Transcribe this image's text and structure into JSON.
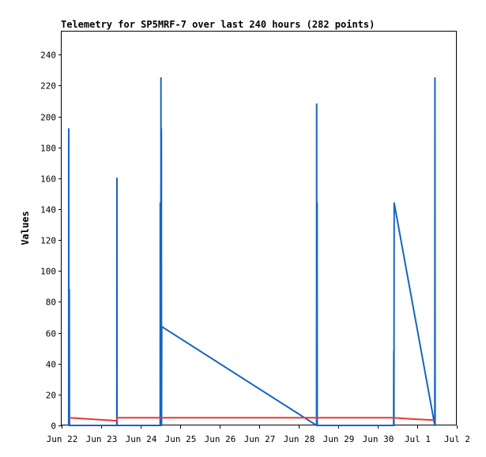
{
  "chart_data": {
    "type": "line",
    "title": "Telemetry for SP5MRF-7 over last 240 hours (282 points)",
    "ylabel": "Values",
    "xlabel": "",
    "ylim": [
      0,
      255
    ],
    "xlim": [
      "2023-06-22 00:00",
      "2023-07-02 00:00"
    ],
    "y_ticks": [
      0,
      20,
      40,
      60,
      80,
      100,
      120,
      140,
      160,
      180,
      200,
      220,
      240
    ],
    "x_ticks": [
      {
        "t": "2023-06-22 00:00",
        "label": "Jun 22"
      },
      {
        "t": "2023-06-23 00:00",
        "label": "Jun 23"
      },
      {
        "t": "2023-06-24 00:00",
        "label": "Jun 24"
      },
      {
        "t": "2023-06-25 00:00",
        "label": "Jun 25"
      },
      {
        "t": "2023-06-26 00:00",
        "label": "Jun 26"
      },
      {
        "t": "2023-06-27 00:00",
        "label": "Jun 27"
      },
      {
        "t": "2023-06-28 00:00",
        "label": "Jun 28"
      },
      {
        "t": "2023-06-29 00:00",
        "label": "Jun 29"
      },
      {
        "t": "2023-06-30 00:00",
        "label": "Jun 30"
      },
      {
        "t": "2023-07-01 00:00",
        "label": "Jul 1"
      },
      {
        "t": "2023-07-02 00:00",
        "label": "Jul 2"
      }
    ],
    "grid": false,
    "legend": "none",
    "series": [
      {
        "color": "#1565c0",
        "points": [
          [
            "2023-06-22 04:15",
            0
          ],
          [
            "2023-06-22 04:20",
            192
          ],
          [
            "2023-06-22 04:25",
            0
          ],
          [
            "2023-06-22 04:35",
            0
          ],
          [
            "2023-06-22 04:40",
            88
          ],
          [
            "2023-06-22 04:45",
            0
          ],
          [
            "2023-06-23 09:30",
            0
          ],
          [
            "2023-06-23 09:35",
            160
          ],
          [
            "2023-06-23 09:40",
            0
          ],
          [
            "2023-06-24 11:50",
            0
          ],
          [
            "2023-06-24 11:55",
            144
          ],
          [
            "2023-06-24 12:00",
            30
          ],
          [
            "2023-06-24 12:10",
            120
          ],
          [
            "2023-06-24 12:15",
            25
          ],
          [
            "2023-06-24 12:20",
            225
          ],
          [
            "2023-06-24 12:25",
            0
          ],
          [
            "2023-06-24 12:35",
            192
          ],
          [
            "2023-06-24 12:40",
            0
          ],
          [
            "2023-06-24 12:50",
            64
          ],
          [
            "2023-06-28 10:50",
            0
          ],
          [
            "2023-06-28 10:55",
            208
          ],
          [
            "2023-06-28 11:00",
            0
          ],
          [
            "2023-06-28 11:10",
            144
          ],
          [
            "2023-06-28 11:15",
            0
          ],
          [
            "2023-06-30 09:40",
            0
          ],
          [
            "2023-06-30 09:45",
            48
          ],
          [
            "2023-06-30 09:50",
            0
          ],
          [
            "2023-06-30 10:00",
            144
          ],
          [
            "2023-07-01 10:40",
            0
          ],
          [
            "2023-07-01 10:45",
            225
          ],
          [
            "2023-07-01 10:50",
            0
          ]
        ]
      },
      {
        "color": "#e53935",
        "points": [
          [
            "2023-06-22 04:30",
            5
          ],
          [
            "2023-06-23 09:30",
            3
          ],
          [
            "2023-06-23 09:45",
            5
          ],
          [
            "2023-06-30 09:00",
            5
          ],
          [
            "2023-06-30 16:00",
            4.5
          ],
          [
            "2023-07-01 00:00",
            4
          ],
          [
            "2023-07-01 10:30",
            3.5
          ]
        ]
      }
    ]
  }
}
